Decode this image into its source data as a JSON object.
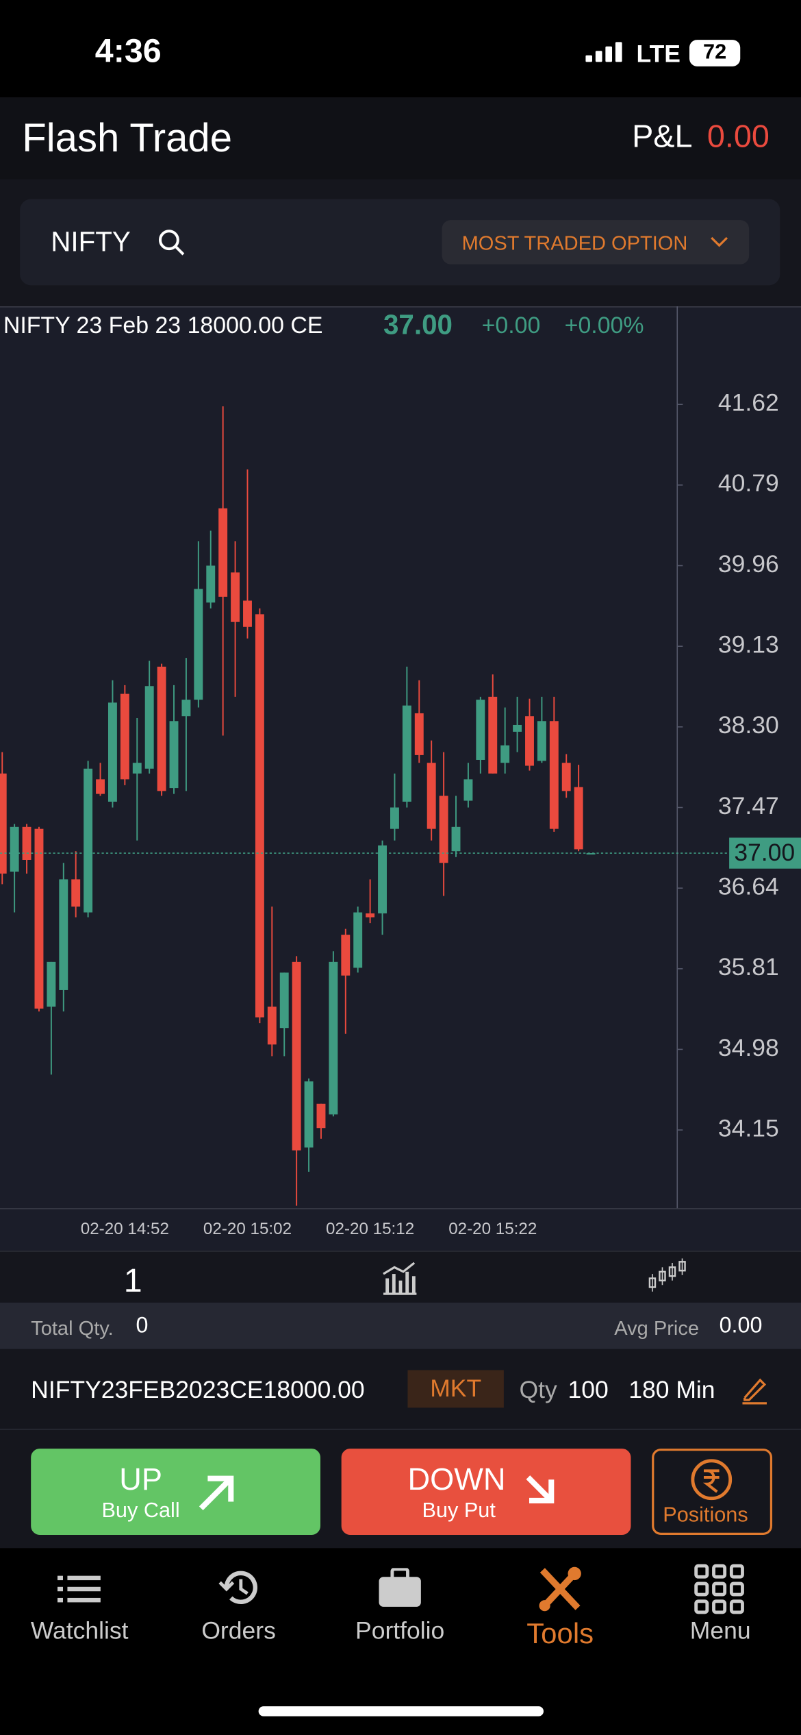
{
  "status_bar": {
    "time": "4:36",
    "network": "LTE",
    "battery": "72"
  },
  "header": {
    "title": "Flash Trade",
    "pnl_label": "P&L",
    "pnl_value": "0.00"
  },
  "search": {
    "symbol": "NIFTY",
    "dropdown": "MOST TRADED OPTION"
  },
  "instrument": {
    "name": "NIFTY 23 Feb 23 18000.00 CE",
    "price": "37.00",
    "change": "+0.00",
    "change_pct": "+0.00%"
  },
  "chart_data": {
    "type": "candlestick",
    "categories": [
      null,
      null,
      null,
      null,
      null,
      null,
      null,
      null,
      null,
      null,
      "02-20 14:52",
      null,
      null,
      null,
      null,
      null,
      null,
      null,
      null,
      null,
      "02-20 15:02",
      null,
      null,
      null,
      null,
      null,
      null,
      null,
      null,
      null,
      "02-20 15:12",
      null,
      null,
      null,
      null,
      null,
      null,
      null,
      null,
      null,
      "02-20 15:22",
      null,
      null,
      null,
      null,
      null,
      null,
      null,
      null
    ],
    "open": [
      37.82,
      36.81,
      37.27,
      37.25,
      35.42,
      35.59,
      36.73,
      36.39,
      37.76,
      37.53,
      38.64,
      37.82,
      37.87,
      38.92,
      37.67,
      38.41,
      38.58,
      39.58,
      40.55,
      39.89,
      39.6,
      39.46,
      35.42,
      35.2,
      35.88,
      33.97,
      34.42,
      34.31,
      36.16,
      35.82,
      36.38,
      36.38,
      37.25,
      37.53,
      38.44,
      37.93,
      37.59,
      37.02,
      37.54,
      37.96,
      38.61,
      37.93,
      38.25,
      38.41,
      37.95,
      38.36,
      37.93,
      37.68,
      37.0
    ],
    "high": [
      38.04,
      37.3,
      37.3,
      37.27,
      35.88,
      36.9,
      37.02,
      37.95,
      37.93,
      38.78,
      38.73,
      38.39,
      38.98,
      38.95,
      38.73,
      39.01,
      40.21,
      40.32,
      41.6,
      40.21,
      40.95,
      39.52,
      36.45,
      35.77,
      35.94,
      34.68,
      34.42,
      35.99,
      36.22,
      36.45,
      36.73,
      37.13,
      37.82,
      38.92,
      38.78,
      38.16,
      38.04,
      37.59,
      37.93,
      38.61,
      38.84,
      38.5,
      38.61,
      38.59,
      38.61,
      38.61,
      38.02,
      37.91,
      37.0
    ],
    "low": [
      36.68,
      36.39,
      36.79,
      35.37,
      34.72,
      35.37,
      36.34,
      36.34,
      37.59,
      37.47,
      37.7,
      37.13,
      37.82,
      37.59,
      37.61,
      37.64,
      38.5,
      39.52,
      38.21,
      38.61,
      39.21,
      35.25,
      34.91,
      34.91,
      33.37,
      33.72,
      34.06,
      34.29,
      35.14,
      35.77,
      36.28,
      36.16,
      37.13,
      37.47,
      37.93,
      37.13,
      36.56,
      36.96,
      37.47,
      37.82,
      37.82,
      37.82,
      38.04,
      37.85,
      37.93,
      37.22,
      37.57,
      37.02,
      37.0
    ],
    "close": [
      36.79,
      37.27,
      36.93,
      35.4,
      35.88,
      36.73,
      36.45,
      37.87,
      37.61,
      38.55,
      37.76,
      37.93,
      38.72,
      37.64,
      38.36,
      38.58,
      39.72,
      39.96,
      39.64,
      39.38,
      39.33,
      35.31,
      35.03,
      35.77,
      33.94,
      34.65,
      34.17,
      35.88,
      35.74,
      36.39,
      36.34,
      37.08,
      37.47,
      38.52,
      38.01,
      37.25,
      36.9,
      37.27,
      37.76,
      38.58,
      37.82,
      38.11,
      38.32,
      37.9,
      38.36,
      37.25,
      37.64,
      37.04,
      37.0
    ],
    "up_color": "#3f9c82",
    "down_color": "#ea4a3e",
    "ylim": [
      33.34,
      42.63
    ],
    "yticks": [
      41.62,
      40.79,
      39.96,
      39.13,
      {
        "value": 38.3,
        "label": "38.30"
      },
      37.47,
      36.64,
      35.81,
      34.98,
      34.15
    ],
    "last_price": {
      "value": 37,
      "label": "37.00"
    }
  },
  "toolbar": {
    "interval": "1"
  },
  "summary": {
    "qty_label": "Total Qty.",
    "qty": "0",
    "avg_label": "Avg Price",
    "avg": "0.00"
  },
  "order": {
    "symbol": "NIFTY23FEB2023CE18000.00",
    "type": "MKT",
    "qty_label": "Qty",
    "qty": "100",
    "validity": "180 Min"
  },
  "buttons": {
    "up": "UP",
    "up_sub": "Buy Call",
    "down": "DOWN",
    "down_sub": "Buy Put",
    "positions": "Positions"
  },
  "nav": [
    "Watchlist",
    "Orders",
    "Portfolio",
    "Tools",
    "Menu"
  ]
}
